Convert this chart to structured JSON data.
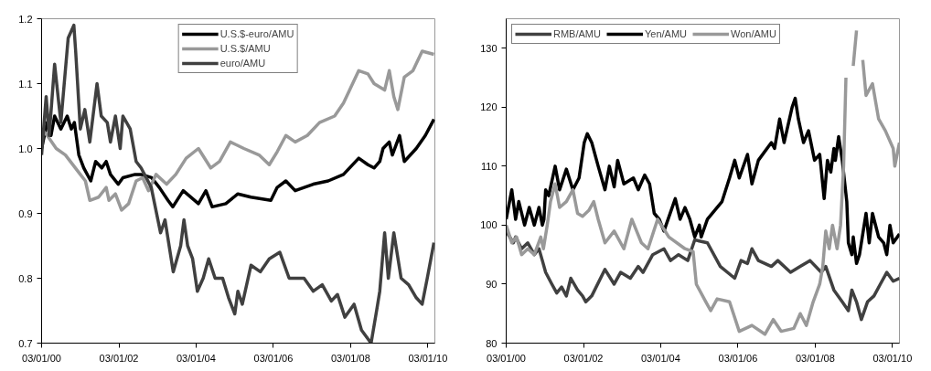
{
  "chart_data": [
    {
      "type": "line",
      "legend": "top",
      "grid": false,
      "xlim": [
        "2000-01-03",
        "2010-03-10"
      ],
      "ylim": [
        0.7,
        1.2
      ],
      "xticks": [
        {
          "value": "2000-01-03",
          "label": "03/01/00"
        },
        {
          "value": "2002-01-03",
          "label": "03/01/02"
        },
        {
          "value": "2004-01-03",
          "label": "03/01/04"
        },
        {
          "value": "2006-01-03",
          "label": "03/01/06"
        },
        {
          "value": "2008-01-03",
          "label": "03/01/08"
        },
        {
          "value": "2010-01-03",
          "label": "03/01/10"
        }
      ],
      "yticks": [
        0.7,
        0.8,
        0.9,
        {
          "value": 1.0,
          "label": "1.0"
        },
        1.1,
        1.2
      ],
      "series": [
        {
          "name": "U.S.$-euro/AMU",
          "color": "#000000",
          "x": [
            "2000-01-03",
            "2000-02-25",
            "2000-04-01",
            "2000-05-05",
            "2000-07-03",
            "2000-09-01",
            "2000-10-10",
            "2000-11-08",
            "2000-12-20",
            "2001-02-05",
            "2001-04-12",
            "2001-05-28",
            "2001-07-25",
            "2001-09-05",
            "2001-10-15",
            "2001-12-28",
            "2002-02-10",
            "2002-06-05",
            "2002-08-01",
            "2002-11-08",
            "2003-01-20",
            "2003-04-12",
            "2003-05-28",
            "2003-09-03",
            "2004-01-25",
            "2004-04-05",
            "2004-06-03",
            "2004-10-10",
            "2005-02-01",
            "2005-06-05",
            "2005-12-10",
            "2006-02-08",
            "2006-05-01",
            "2006-07-28",
            "2007-01-15",
            "2007-06-05",
            "2007-10-28",
            "2008-03-20",
            "2008-06-15",
            "2008-08-12",
            "2008-10-05",
            "2008-11-05",
            "2009-01-03",
            "2009-02-01",
            "2009-04-10",
            "2009-05-25",
            "2009-09-15",
            "2009-12-10",
            "2010-03-01"
          ],
          "values": [
            1.0,
            1.04,
            1.02,
            1.05,
            1.03,
            1.05,
            1.03,
            1.04,
            0.99,
            0.97,
            0.95,
            0.98,
            0.97,
            0.98,
            0.96,
            0.945,
            0.955,
            0.96,
            0.96,
            0.955,
            0.94,
            0.92,
            0.91,
            0.935,
            0.915,
            0.935,
            0.91,
            0.915,
            0.93,
            0.925,
            0.92,
            0.94,
            0.95,
            0.935,
            0.945,
            0.95,
            0.96,
            0.985,
            0.975,
            0.97,
            0.98,
            1.0,
            1.01,
            0.99,
            1.02,
            0.98,
            1.0,
            1.02,
            1.045
          ]
        },
        {
          "name": "U.S.$/AMU",
          "color": "#999999",
          "x": [
            "2000-01-03",
            "2000-02-25",
            "2000-05-20",
            "2000-08-15",
            "2001-01-03",
            "2001-02-20",
            "2001-04-03",
            "2001-06-25",
            "2001-09-05",
            "2001-10-01",
            "2001-12-01",
            "2002-01-28",
            "2002-04-05",
            "2002-06-15",
            "2002-08-15",
            "2002-10-10",
            "2002-12-20",
            "2003-03-30",
            "2003-06-25",
            "2003-10-01",
            "2004-01-25",
            "2004-05-20",
            "2004-08-12",
            "2004-11-22",
            "2005-03-30",
            "2005-08-20",
            "2005-11-25",
            "2006-02-08",
            "2006-05-01",
            "2006-07-28",
            "2006-11-20",
            "2007-03-15",
            "2007-08-05",
            "2007-10-28",
            "2007-12-25",
            "2008-03-20",
            "2008-06-15",
            "2008-08-12",
            "2008-11-20",
            "2009-01-03",
            "2009-02-15",
            "2009-03-25",
            "2009-05-25",
            "2009-08-15",
            "2009-11-10",
            "2010-03-01"
          ],
          "values": [
            1.03,
            1.02,
            1.0,
            0.99,
            0.96,
            0.95,
            0.92,
            0.925,
            0.94,
            0.92,
            0.93,
            0.905,
            0.915,
            0.95,
            0.955,
            0.935,
            0.96,
            0.945,
            0.96,
            0.985,
            1.0,
            0.97,
            0.98,
            1.01,
            1.0,
            0.99,
            0.975,
            0.995,
            1.02,
            1.01,
            1.02,
            1.04,
            1.05,
            1.07,
            1.09,
            1.12,
            1.115,
            1.1,
            1.09,
            1.12,
            1.08,
            1.06,
            1.11,
            1.12,
            1.15,
            1.145
          ]
        },
        {
          "name": "euro/AMU",
          "color": "#404040",
          "x": [
            "2000-01-03",
            "2000-02-15",
            "2000-03-15",
            "2000-05-05",
            "2000-07-03",
            "2000-09-10",
            "2000-11-03",
            "2000-11-20",
            "2001-01-03",
            "2001-02-15",
            "2001-04-03",
            "2001-06-10",
            "2001-07-20",
            "2001-09-15",
            "2001-10-15",
            "2001-12-01",
            "2002-01-15",
            "2002-02-10",
            "2002-04-20",
            "2002-06-15",
            "2002-08-01",
            "2002-11-05",
            "2003-02-01",
            "2003-03-15",
            "2003-06-01",
            "2003-08-10",
            "2003-09-10",
            "2003-10-15",
            "2003-12-01",
            "2004-01-15",
            "2004-03-10",
            "2004-05-01",
            "2004-07-01",
            "2004-09-10",
            "2004-11-05",
            "2005-01-03",
            "2005-02-01",
            "2005-03-15",
            "2005-06-05",
            "2005-09-01",
            "2005-11-25",
            "2006-03-05",
            "2006-06-01",
            "2006-10-20",
            "2007-01-15",
            "2007-04-10",
            "2007-07-05",
            "2007-09-01",
            "2007-11-10",
            "2008-02-05",
            "2008-04-15",
            "2008-07-15",
            "2008-09-05",
            "2008-10-05",
            "2008-11-20",
            "2008-12-25",
            "2009-02-15",
            "2009-04-25",
            "2009-07-05",
            "2009-09-15",
            "2009-11-10",
            "2009-12-28",
            "2010-03-01"
          ],
          "values": [
            0.99,
            1.08,
            1.02,
            1.13,
            1.04,
            1.17,
            1.19,
            1.15,
            1.03,
            1.06,
            1.01,
            1.1,
            1.05,
            1.04,
            1.01,
            1.05,
            1.0,
            1.05,
            1.03,
            0.98,
            0.97,
            0.94,
            0.87,
            0.89,
            0.81,
            0.85,
            0.89,
            0.85,
            0.83,
            0.78,
            0.8,
            0.83,
            0.8,
            0.8,
            0.77,
            0.745,
            0.78,
            0.76,
            0.82,
            0.81,
            0.83,
            0.84,
            0.8,
            0.8,
            0.78,
            0.79,
            0.765,
            0.775,
            0.74,
            0.76,
            0.72,
            0.7,
            0.75,
            0.78,
            0.87,
            0.8,
            0.87,
            0.8,
            0.79,
            0.77,
            0.76,
            0.8,
            0.855
          ]
        }
      ]
    },
    {
      "type": "line",
      "legend": "top left",
      "grid": false,
      "xlim": [
        "2000-01-03",
        "2010-03-10"
      ],
      "ylim": [
        80,
        135
      ],
      "xticks": [
        {
          "value": "2000-01-03",
          "label": "03/01/00"
        },
        {
          "value": "2002-01-03",
          "label": "03/01/02"
        },
        {
          "value": "2004-01-03",
          "label": "03/01/04"
        },
        {
          "value": "2006-01-03",
          "label": "03/01/06"
        },
        {
          "value": "2008-01-03",
          "label": "03/01/08"
        },
        {
          "value": "2010-01-03",
          "label": "03/01/10"
        }
      ],
      "yticks": [
        80,
        90,
        100,
        110,
        120,
        130
      ],
      "series": [
        {
          "name": "RMB/AMU",
          "color": "#404040",
          "x": [
            "2000-01-03",
            "2000-03-10",
            "2000-04-01",
            "2000-05-28",
            "2000-07-25",
            "2000-09-25",
            "2000-11-08",
            "2000-12-10",
            "2001-01-10",
            "2001-03-10",
            "2001-04-25",
            "2001-06-10",
            "2001-07-25",
            "2001-09-05",
            "2001-11-08",
            "2001-12-25",
            "2002-01-25",
            "2002-03-22",
            "2002-07-25",
            "2002-10-20",
            "2002-12-20",
            "2003-03-22",
            "2003-06-05",
            "2003-07-20",
            "2003-10-20",
            "2004-02-03",
            "2004-04-05",
            "2004-06-20",
            "2004-09-15",
            "2004-11-20",
            "2005-03-20",
            "2005-07-20",
            "2005-12-03",
            "2006-02-01",
            "2006-04-03",
            "2006-05-15",
            "2006-07-15",
            "2006-11-15",
            "2007-01-15",
            "2007-05-15",
            "2007-08-15",
            "2007-11-15",
            "2008-03-01",
            "2008-04-12",
            "2008-06-28",
            "2008-09-15",
            "2008-11-12",
            "2008-12-15",
            "2009-01-28",
            "2009-03-15",
            "2009-05-12",
            "2009-07-12",
            "2009-09-10",
            "2009-11-10",
            "2010-01-10",
            "2010-03-10"
          ],
          "values": [
            99,
            97,
            98,
            96,
            97,
            95,
            96,
            94,
            92,
            90,
            88.5,
            89.5,
            88,
            91,
            89,
            88,
            87,
            88,
            92.5,
            90,
            92,
            91,
            93,
            92,
            95,
            96,
            94,
            95,
            94,
            97.5,
            97,
            93,
            91,
            94,
            93.5,
            96,
            94,
            93,
            94,
            92,
            93,
            94,
            92,
            93,
            89,
            87,
            85.5,
            89,
            87,
            84,
            87,
            88,
            90,
            92,
            90.5,
            91
          ]
        },
        {
          "name": "Yen/AMU",
          "color": "#000000",
          "x": [
            "2000-01-03",
            "2000-02-25",
            "2000-04-01",
            "2000-05-01",
            "2000-06-25",
            "2000-08-08",
            "2000-09-25",
            "2000-11-08",
            "2000-12-10",
            "2000-12-25",
            "2001-01-10",
            "2001-02-08",
            "2001-04-10",
            "2001-05-22",
            "2001-07-25",
            "2001-09-25",
            "2001-11-22",
            "2002-01-10",
            "2002-02-08",
            "2002-03-22",
            "2002-05-22",
            "2002-07-25",
            "2002-09-05",
            "2002-10-20",
            "2002-11-22",
            "2003-01-20",
            "2003-04-20",
            "2003-06-05",
            "2003-08-05",
            "2003-09-20",
            "2003-11-03",
            "2003-12-20",
            "2004-02-03",
            "2004-05-20",
            "2004-07-05",
            "2004-08-20",
            "2004-10-05",
            "2004-11-20",
            "2005-01-03",
            "2005-01-20",
            "2005-03-20",
            "2005-08-05",
            "2005-10-15",
            "2005-12-03",
            "2006-01-15",
            "2006-04-03",
            "2006-05-15",
            "2006-07-15",
            "2006-11-15",
            "2006-12-15",
            "2007-02-01",
            "2007-03-15",
            "2007-05-30",
            "2007-06-28",
            "2007-07-28",
            "2007-09-15",
            "2007-11-01",
            "2007-12-28",
            "2008-02-15",
            "2008-03-28",
            "2008-04-28",
            "2008-05-30",
            "2008-06-28",
            "2008-07-12",
            "2008-08-12",
            "2008-09-15",
            "2008-10-28",
            "2008-11-12",
            "2008-12-15",
            "2008-12-28",
            "2009-01-28",
            "2009-02-25",
            "2009-04-28",
            "2009-05-28",
            "2009-06-28",
            "2009-08-25",
            "2009-10-12",
            "2009-11-10",
            "2009-12-10",
            "2010-01-10",
            "2010-03-10"
          ],
          "values": [
            101,
            106,
            101,
            104,
            100,
            103,
            100,
            103,
            100,
            101,
            106,
            105,
            110,
            106,
            109.5,
            106,
            108,
            114,
            115.5,
            114,
            110,
            106,
            110,
            106.5,
            111,
            107,
            108,
            106,
            108.5,
            107,
            102,
            101,
            99,
            104.5,
            101,
            103,
            101,
            98,
            100,
            98,
            101,
            104,
            108,
            111,
            108,
            112,
            107,
            111,
            114,
            113,
            118,
            114,
            120,
            121.5,
            118,
            114,
            116,
            111,
            112,
            104.5,
            111,
            109,
            113,
            111,
            115,
            111,
            104,
            97,
            95,
            98,
            93.5,
            95,
            102,
            97,
            102,
            98,
            97,
            95,
            100,
            97,
            98.5
          ]
        },
        {
          "name": "Won/AMU",
          "color": "#999999",
          "x": [
            "2000-01-03",
            "2000-02-25",
            "2000-04-10",
            "2000-05-28",
            "2000-07-25",
            "2000-09-25",
            "2000-11-25",
            "2000-12-20",
            "2001-01-25",
            "2001-02-25",
            "2001-04-10",
            "2001-05-22",
            "2001-07-25",
            "2001-09-25",
            "2001-11-08",
            "2001-12-25",
            "2002-02-22",
            "2002-04-10",
            "2002-05-22",
            "2002-07-25",
            "2002-10-20",
            "2003-01-20",
            "2003-04-05",
            "2003-07-05",
            "2003-09-05",
            "2003-12-05",
            "2004-03-20",
            "2004-08-20",
            "2004-11-05",
            "2004-12-05",
            "2005-03-05",
            "2005-04-20",
            "2005-06-20",
            "2005-10-15",
            "2006-01-15",
            "2006-05-15",
            "2006-09-15",
            "2006-12-03",
            "2007-02-15",
            "2007-06-15",
            "2007-08-15",
            "2007-10-12",
            "2007-12-15",
            "2008-02-15",
            "2008-03-15",
            "2008-04-12",
            "2008-05-15",
            "2008-06-15",
            "2008-07-28",
            "2008-08-30",
            "2008-09-28",
            "2008-10-20",
            "2008-11-05",
            "2008-11-25",
            "2008-12-28",
            "2009-01-28",
            "2009-02-25",
            "2009-03-28",
            "2009-04-28",
            "2009-06-28",
            "2009-08-25",
            "2009-10-28",
            "2010-01-10",
            "2010-01-25",
            "2010-03-10"
          ],
          "values": [
            100,
            97,
            98,
            95,
            96,
            95,
            98,
            96,
            100,
            104,
            107,
            103,
            104,
            106,
            102,
            101.5,
            102.5,
            104,
            101,
            97,
            99,
            96,
            101,
            97,
            96,
            101,
            98,
            96,
            95.5,
            90,
            87,
            85.5,
            87.5,
            87,
            82,
            83,
            81.5,
            84,
            82,
            82.5,
            85,
            83,
            87,
            90,
            93,
            99,
            96,
            100,
            96,
            100,
            110,
            125,
            null,
            null,
            127,
            133,
            null,
            128,
            122,
            124,
            118,
            116,
            113,
            110,
            114
          ]
        }
      ]
    }
  ]
}
